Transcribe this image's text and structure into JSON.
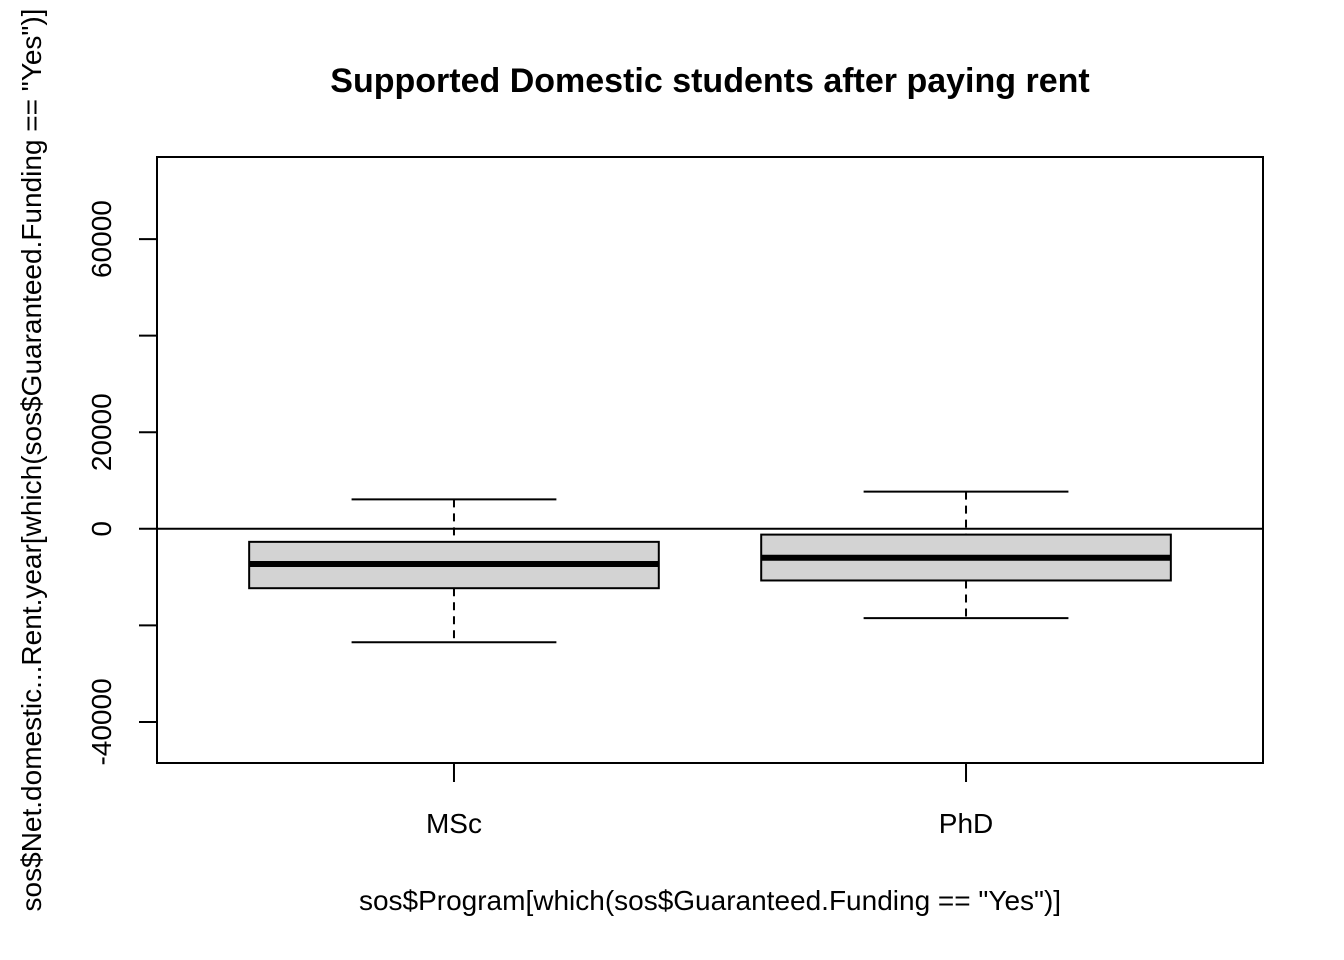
{
  "chart_data": {
    "type": "box",
    "title": "Supported Domestic students after paying rent",
    "xlabel": "sos$Program[which(sos$Guaranteed.Funding == \"Yes\")]",
    "ylabel": "sos$Net.domestic...Rent.year[which(sos$Guaranteed.Funding == \"Yes\")]",
    "ylim": [
      -48500,
      77000
    ],
    "yticks": [
      -40000,
      -20000,
      0,
      20000,
      40000,
      60000
    ],
    "ytick_labels": [
      "-40000",
      "",
      "0",
      "20000",
      "",
      "60000"
    ],
    "reference_line": 0,
    "grid": false,
    "legend": "none",
    "colors": {
      "box_fill": "#d3d3d3",
      "stroke": "#000000"
    },
    "categories": [
      "MSc",
      "PhD"
    ],
    "boxes": [
      {
        "name": "MSc",
        "min": -23500,
        "q1": -12300,
        "median": -7300,
        "q3": -2700,
        "max": 6100
      },
      {
        "name": "PhD",
        "min": -18500,
        "q1": -10700,
        "median": -6000,
        "q3": -1200,
        "max": 7700
      }
    ]
  }
}
